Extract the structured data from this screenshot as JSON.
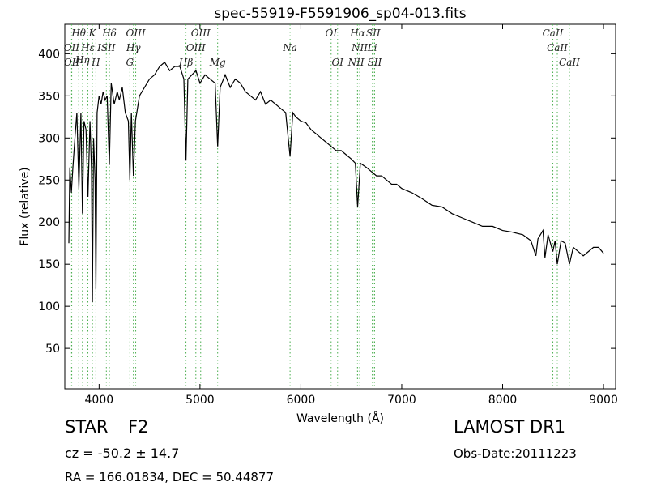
{
  "chart_data": {
    "type": "line",
    "title": "spec-55919-F5591906_sp04-013.fits",
    "x_label": "Wavelength (Å)",
    "y_label": "Flux (relative)",
    "xlim": [
      3660,
      9120
    ],
    "ylim": [
      2,
      435
    ],
    "xticks": [
      4000,
      5000,
      6000,
      7000,
      8000,
      9000
    ],
    "yticks": [
      50,
      100,
      150,
      200,
      250,
      300,
      350,
      400
    ],
    "line_color": "#000000",
    "marker_line_color": "#4caf50",
    "x": [
      3700,
      3710,
      3725,
      3740,
      3760,
      3780,
      3800,
      3820,
      3835,
      3850,
      3870,
      3890,
      3910,
      3925,
      3934,
      3945,
      3960,
      3968,
      3980,
      4000,
      4020,
      4040,
      4060,
      4080,
      4102,
      4120,
      4150,
      4180,
      4200,
      4230,
      4260,
      4290,
      4305,
      4320,
      4340,
      4360,
      4400,
      4450,
      4500,
      4550,
      4600,
      4650,
      4700,
      4750,
      4800,
      4840,
      4861,
      4880,
      4920,
      4960,
      5000,
      5050,
      5100,
      5150,
      5175,
      5200,
      5250,
      5300,
      5350,
      5400,
      5450,
      5500,
      5550,
      5600,
      5650,
      5700,
      5750,
      5800,
      5850,
      5893,
      5920,
      5950,
      6000,
      6050,
      6100,
      6150,
      6200,
      6250,
      6300,
      6350,
      6400,
      6450,
      6500,
      6540,
      6563,
      6590,
      6650,
      6700,
      6750,
      6800,
      6850,
      6900,
      6950,
      7000,
      7100,
      7200,
      7300,
      7400,
      7500,
      7600,
      7700,
      7800,
      7900,
      8000,
      8100,
      8200,
      8280,
      8330,
      8350,
      8400,
      8420,
      8450,
      8498,
      8520,
      8542,
      8580,
      8620,
      8662,
      8700,
      8750,
      8800,
      8850,
      8900,
      8950,
      9000
    ],
    "series": [
      {
        "name": "flux",
        "values": [
          175,
          265,
          235,
          265,
          300,
          330,
          240,
          330,
          210,
          320,
          310,
          230,
          320,
          260,
          105,
          300,
          250,
          120,
          330,
          350,
          340,
          355,
          345,
          350,
          268,
          365,
          340,
          355,
          345,
          360,
          330,
          320,
          250,
          330,
          255,
          320,
          350,
          360,
          370,
          375,
          385,
          390,
          380,
          385,
          385,
          370,
          273,
          370,
          375,
          380,
          365,
          375,
          370,
          365,
          290,
          360,
          375,
          360,
          370,
          365,
          355,
          350,
          345,
          355,
          340,
          345,
          340,
          335,
          330,
          278,
          330,
          325,
          320,
          318,
          310,
          305,
          300,
          295,
          290,
          285,
          285,
          280,
          275,
          270,
          218,
          270,
          265,
          260,
          255,
          255,
          250,
          245,
          245,
          240,
          235,
          228,
          220,
          218,
          210,
          205,
          200,
          195,
          195,
          190,
          188,
          185,
          178,
          160,
          180,
          190,
          158,
          185,
          165,
          178,
          150,
          178,
          175,
          150,
          170,
          165,
          160,
          165,
          170,
          170,
          163
        ]
      }
    ],
    "lines": [
      {
        "label": "Hθ",
        "wavelength": 3798
      },
      {
        "label": "K",
        "wavelength": 3934
      },
      {
        "label": "Hδ",
        "wavelength": 4102
      },
      {
        "label": "OIII",
        "wavelength": 4363
      },
      {
        "label": "OIII",
        "wavelength": 5007
      },
      {
        "label": "OI",
        "wavelength": 6300
      },
      {
        "label": "Hα",
        "wavelength": 6563
      },
      {
        "label": "SII",
        "wavelength": 6717
      },
      {
        "label": "CaII",
        "wavelength": 8498
      },
      {
        "label": "OII",
        "wavelength": 3727
      },
      {
        "label": "Hε",
        "wavelength": 3889
      },
      {
        "label": "ISII",
        "wavelength": 4072
      },
      {
        "label": "Hγ",
        "wavelength": 4340
      },
      {
        "label": "OIII",
        "wavelength": 4959
      },
      {
        "label": "Na",
        "wavelength": 5893
      },
      {
        "label": "NII",
        "wavelength": 6583
      },
      {
        "label": "Li",
        "wavelength": 6708
      },
      {
        "label": "CaII",
        "wavelength": 8542
      },
      {
        "label": "Hη",
        "wavelength": 3835
      },
      {
        "label": "OII",
        "wavelength": 3729
      },
      {
        "label": "H",
        "wavelength": 3968
      },
      {
        "label": "G",
        "wavelength": 4305
      },
      {
        "label": "Hβ",
        "wavelength": 4861
      },
      {
        "label": "Mg",
        "wavelength": 5175
      },
      {
        "label": "OI",
        "wavelength": 6364
      },
      {
        "label": "NII",
        "wavelength": 6548
      },
      {
        "label": "SII",
        "wavelength": 6731
      },
      {
        "label": "CaII",
        "wavelength": 8662
      }
    ],
    "object_class": "STAR",
    "subclass": "F2",
    "redshift": "cz = -50.2 ± 14.7",
    "coordinates": "RA = 166.01834, DEC = 50.44877",
    "survey": "LAMOST DR1",
    "obs_date": "Obs-Date:20111223"
  }
}
